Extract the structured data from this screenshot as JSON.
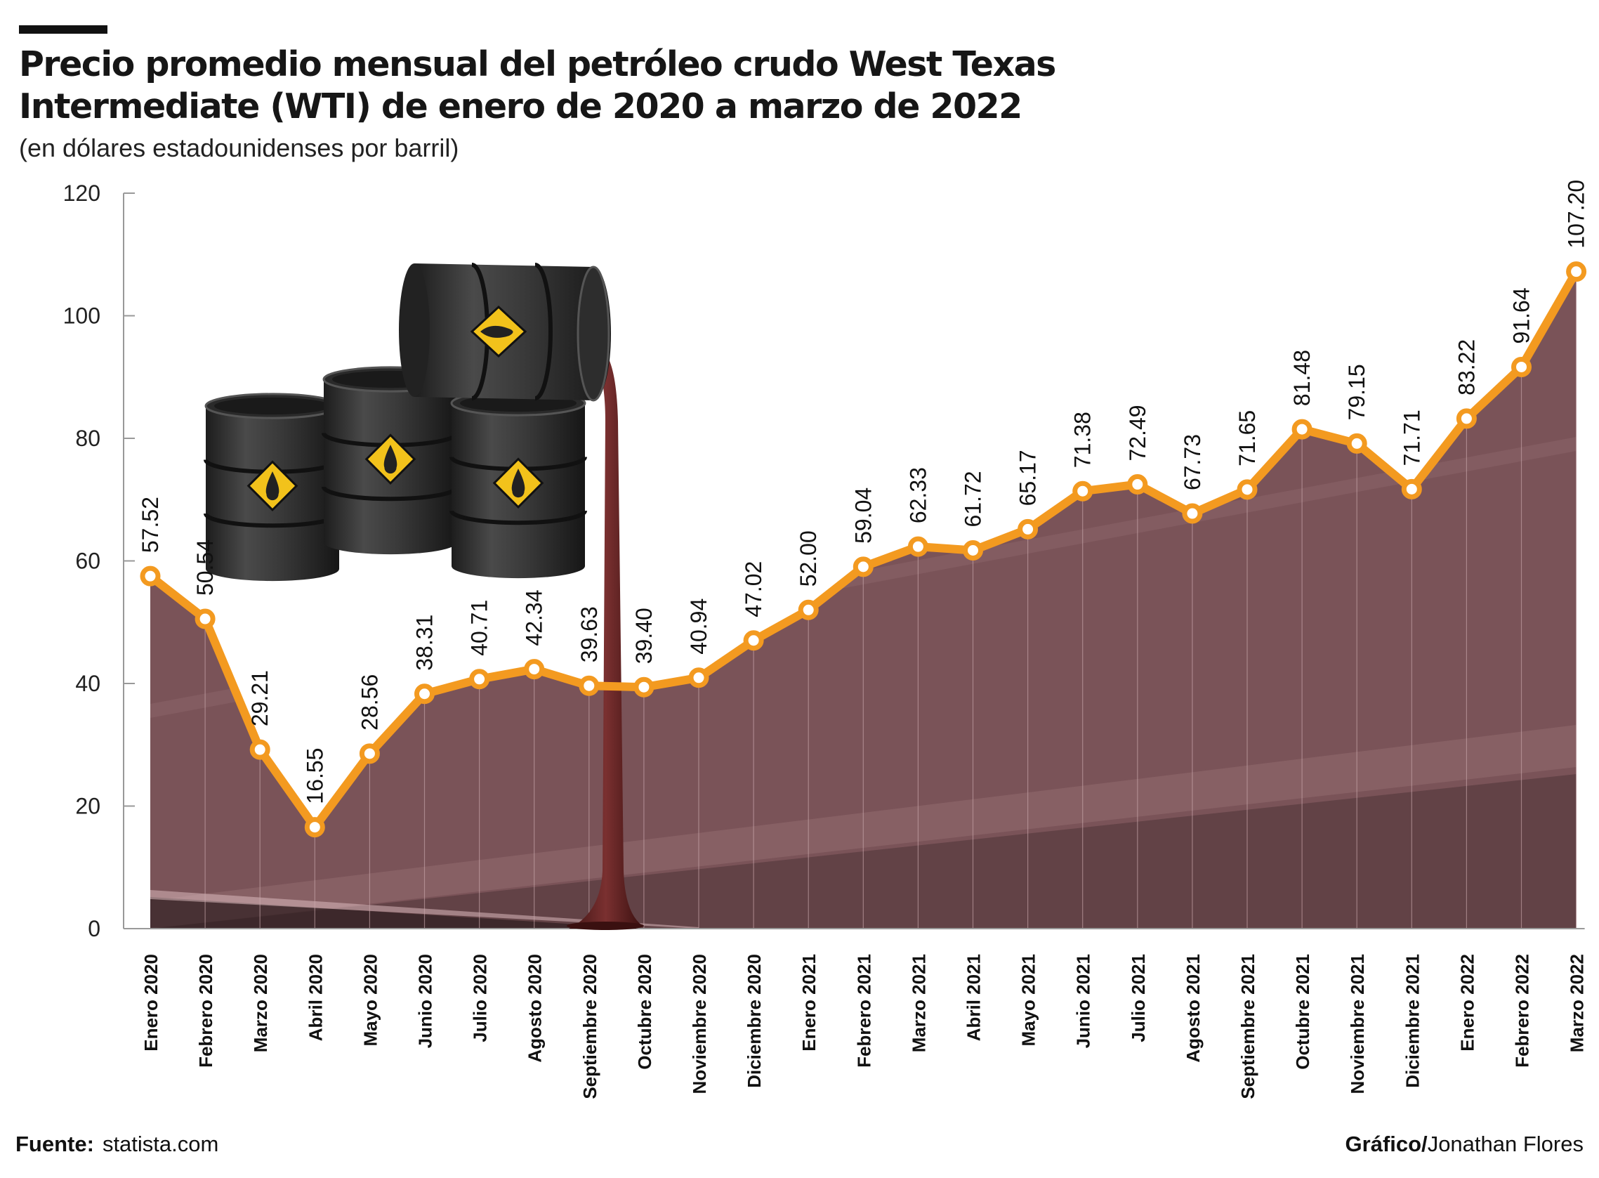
{
  "title": "Precio promedio mensual del petróleo crudo West Texas Intermediate (WTI) de enero de 2020 a marzo de 2022",
  "subtitle": "(en dólares estadounidenses por barril)",
  "footer": {
    "source_label": "Fuente:",
    "source_value": "statista.com",
    "credit_label": "Gráfico/",
    "credit_value": "Jonathan Flores"
  },
  "colors": {
    "line": "#f39a20",
    "marker_fill": "#ffffff",
    "area": "#7a5358",
    "area_dark": "#4e3438",
    "axis": "#999999",
    "oil": "#5a1f1f"
  },
  "icons": [
    "oil-barrel-icon",
    "oil-drop-diamond-icon"
  ],
  "chart_data": {
    "type": "line",
    "title": "Precio promedio mensual del petróleo crudo West Texas Intermediate (WTI) de enero de 2020 a marzo de 2022",
    "subtitle": "(en dólares estadounidenses por barril)",
    "xlabel": "",
    "ylabel": "",
    "ylim": [
      0,
      120
    ],
    "yticks": [
      "0",
      "20",
      "40",
      "60",
      "80",
      "100",
      "120"
    ],
    "grid": false,
    "categories": [
      "Enero 2020",
      "Febrero 2020",
      "Marzo 2020",
      "Abril 2020",
      "Mayo 2020",
      "Junio 2020",
      "Julio 2020",
      "Agosto 2020",
      "Septiembre 2020",
      "Octubre 2020",
      "Noviembre 2020",
      "Diciembre 2020",
      "Enero 2021",
      "Febrero 2021",
      "Marzo 2021",
      "Abril 2021",
      "Mayo 2021",
      "Junio 2021",
      "Julio 2021",
      "Agosto 2021",
      "Septiembre 2021",
      "Octubre 2021",
      "Noviembre 2021",
      "Diciembre 2021",
      "Enero 2022",
      "Febrero 2022",
      "Marzo 2022"
    ],
    "values": [
      57.52,
      50.54,
      29.21,
      16.55,
      28.56,
      38.31,
      40.71,
      42.34,
      39.63,
      39.4,
      40.94,
      47.02,
      52.0,
      59.04,
      62.33,
      61.72,
      65.17,
      71.38,
      72.49,
      67.73,
      71.65,
      81.48,
      79.15,
      71.71,
      83.22,
      91.64,
      107.2
    ],
    "labels": [
      "57.52",
      "50.54",
      "29.21",
      "16.55",
      "28.56",
      "38.31",
      "40.71",
      "42.34",
      "39.63",
      "39.40",
      "40.94",
      "47.02",
      "52.00",
      "59.04",
      "62.33",
      "61.72",
      "65.17",
      "71.38",
      "72.49",
      "67.73",
      "71.65",
      "81.48",
      "79.15",
      "71.71",
      "83.22",
      "91.64",
      "107.20"
    ]
  }
}
